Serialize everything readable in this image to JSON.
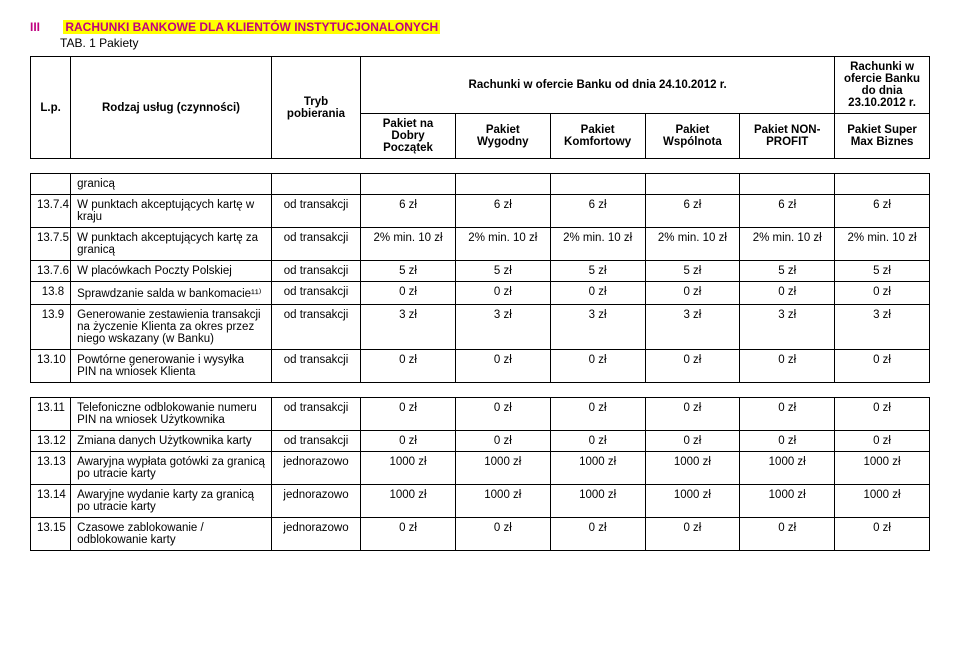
{
  "header": {
    "section_number": "III",
    "section_title": "RACHUNKI BANKOWE DLA KLIENTÓW INSTYTUCJONALONYCH",
    "subtitle": "TAB. 1 Pakiety",
    "lp_label": "L.p.",
    "rodzaj_label": "Rodzaj usług (czynności)",
    "tryb_label": "Tryb pobierania",
    "offer_current": "Rachunki w ofercie Banku od dnia 24.10.2012 r.",
    "offer_prev": "Rachunki w ofercie Banku do dnia 23.10.2012 r.",
    "cols": {
      "c1": "Pakiet na Dobry Początek",
      "c2": "Pakiet Wygodny",
      "c3": "Pakiet Komfortowy",
      "c4": "Pakiet Wspólnota",
      "c5": "Pakiet NON-PROFIT",
      "c6": "Pakiet Super Max Biznes"
    }
  },
  "pre": {
    "text": "granicą"
  },
  "rows": {
    "r0": {
      "num": "13.7.4",
      "desc": "W punktach akceptujących kartę w kraju",
      "tryb": "od transakcji",
      "v1": "6 zł",
      "v2": "6 zł",
      "v3": "6 zł",
      "v4": "6 zł",
      "v5": "6 zł",
      "v6": "6 zł"
    },
    "r1": {
      "num": "13.7.5",
      "desc": "W punktach akceptujących kartę za granicą",
      "tryb": "od transakcji",
      "v1": "2% min. 10 zł",
      "v2": "2% min. 10 zł",
      "v3": "2% min. 10 zł",
      "v4": "2% min. 10 zł",
      "v5": "2% min. 10 zł",
      "v6": "2% min. 10 zł"
    },
    "r2": {
      "num": "13.7.6",
      "desc": "W placówkach Poczty Polskiej",
      "tryb": "od transakcji",
      "v1": "5 zł",
      "v2": "5 zł",
      "v3": "5 zł",
      "v4": "5 zł",
      "v5": "5 zł",
      "v6": "5 zł"
    },
    "r3": {
      "num": "13.8",
      "desc": "Sprawdzanie salda w bankomacie¹¹⁾",
      "tryb": "od transakcji",
      "v1": "0 zł",
      "v2": "0 zł",
      "v3": "0 zł",
      "v4": "0 zł",
      "v5": "0 zł",
      "v6": "0 zł"
    },
    "r4": {
      "num": "13.9",
      "desc": "Generowanie zestawienia transakcji na życzenie Klienta za okres przez niego wskazany (w Banku)",
      "tryb": "od transakcji",
      "v1": "3 zł",
      "v2": "3 zł",
      "v3": "3 zł",
      "v4": "3 zł",
      "v5": "3 zł",
      "v6": "3 zł"
    },
    "r5": {
      "num": "13.10",
      "desc": "Powtórne generowanie i wysyłka PIN na wniosek Klienta",
      "tryb": "od transakcji",
      "v1": "0 zł",
      "v2": "0 zł",
      "v3": "0 zł",
      "v4": "0 zł",
      "v5": "0 zł",
      "v6": "0 zł"
    },
    "r6": {
      "num": "13.11",
      "desc": "Telefoniczne odblokowanie numeru PIN na wniosek Użytkownika",
      "tryb": "od transakcji",
      "v1": "0 zł",
      "v2": "0 zł",
      "v3": "0 zł",
      "v4": "0 zł",
      "v5": "0 zł",
      "v6": "0 zł"
    },
    "r7": {
      "num": "13.12",
      "desc": "Zmiana danych Użytkownika karty",
      "tryb": "od transakcji",
      "v1": "0 zł",
      "v2": "0 zł",
      "v3": "0 zł",
      "v4": "0 zł",
      "v5": "0 zł",
      "v6": "0 zł"
    },
    "r8": {
      "num": "13.13",
      "desc": "Awaryjna wypłata gotówki za granicą po utracie karty",
      "tryb": "jednorazowo",
      "v1": "1000 zł",
      "v2": "1000 zł",
      "v3": "1000 zł",
      "v4": "1000 zł",
      "v5": "1000 zł",
      "v6": "1000 zł"
    },
    "r9": {
      "num": "13.14",
      "desc": "Awaryjne wydanie karty za granicą po utracie karty",
      "tryb": "jednorazowo",
      "v1": "1000 zł",
      "v2": "1000 zł",
      "v3": "1000 zł",
      "v4": "1000 zł",
      "v5": "1000 zł",
      "v6": "1000 zł"
    },
    "r10": {
      "num": "13.15",
      "desc": "Czasowe zablokowanie / odblokowanie karty",
      "tryb": "jednorazowo",
      "v1": "0 zł",
      "v2": "0 zł",
      "v3": "0 zł",
      "v4": "0 zł",
      "v5": "0 zł",
      "v6": "0 zł"
    }
  }
}
